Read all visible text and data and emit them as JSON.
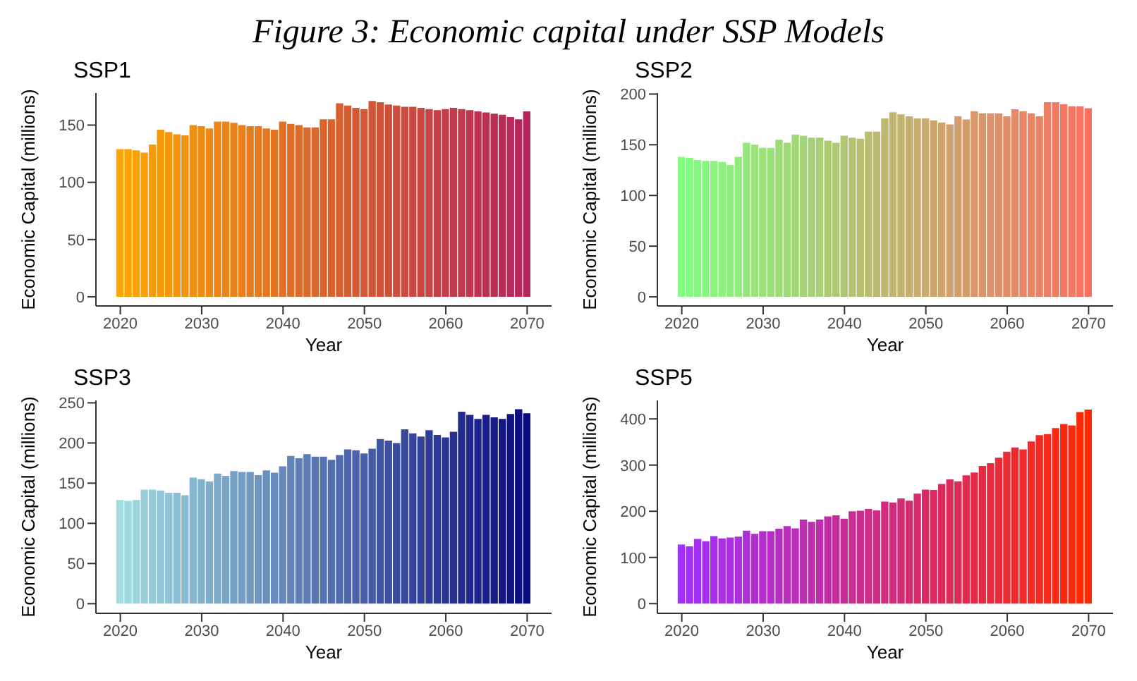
{
  "chart_data": [
    {
      "type": "bar",
      "title": "SSP1",
      "annotations": [
        "Figure 3: Economic capital under SSP Models"
      ],
      "xlabel": "Year",
      "ylabel": "Economic Capital (millions)",
      "xlim": [
        2017,
        2073
      ],
      "xticks": [
        2020,
        2030,
        2040,
        2050,
        2060,
        2070
      ],
      "ylim": [
        -8,
        178
      ],
      "yticks": [
        0,
        50,
        100,
        150
      ],
      "x": [
        2020,
        2021,
        2022,
        2023,
        2024,
        2025,
        2026,
        2027,
        2028,
        2029,
        2030,
        2031,
        2032,
        2033,
        2034,
        2035,
        2036,
        2037,
        2038,
        2039,
        2040,
        2041,
        2042,
        2043,
        2044,
        2045,
        2046,
        2047,
        2048,
        2049,
        2050,
        2051,
        2052,
        2053,
        2054,
        2055,
        2056,
        2057,
        2058,
        2059,
        2060,
        2061,
        2062,
        2063,
        2064,
        2065,
        2066,
        2067,
        2068,
        2069,
        2070
      ],
      "values": [
        129,
        129,
        128,
        126,
        133,
        146,
        144,
        142,
        141,
        150,
        149,
        147,
        153,
        153,
        152,
        150,
        149,
        149,
        147,
        146,
        153,
        151,
        150,
        148,
        148,
        155,
        155,
        169,
        167,
        165,
        164,
        171,
        170,
        168,
        167,
        166,
        166,
        165,
        164,
        163,
        164,
        165,
        164,
        163,
        162,
        161,
        160,
        159,
        157,
        155,
        162
      ],
      "colors": [
        "#ffa500",
        "#fea202",
        "#fca004",
        "#fb9d05",
        "#f99b07",
        "#f89809",
        "#f6960b",
        "#f5930d",
        "#f3900e",
        "#f28e10",
        "#f08b12",
        "#ef8914",
        "#ed8616",
        "#ec8317",
        "#ea8119",
        "#e97e1b",
        "#e77c1d",
        "#e6791f",
        "#e47720",
        "#e37422",
        "#e17124",
        "#e06f26",
        "#de6c28",
        "#dd6a29",
        "#db672b",
        "#da652d",
        "#d9622f",
        "#d75f31",
        "#d65d32",
        "#d45a34",
        "#d35836",
        "#d15538",
        "#d0523a",
        "#ce503b",
        "#cd4d3d",
        "#cb4b3f",
        "#ca4841",
        "#c84643",
        "#c74344",
        "#c54046",
        "#c43e48",
        "#c23b4a",
        "#c1394c",
        "#bf364d",
        "#be334f",
        "#bc3151",
        "#bb2e53",
        "#b92c55",
        "#b82956",
        "#b62758",
        "#b5245a"
      ]
    },
    {
      "type": "bar",
      "title": "SSP2",
      "xlabel": "Year",
      "ylabel": "Economic Capital (millions)",
      "xlim": [
        2017,
        2073
      ],
      "xticks": [
        2020,
        2030,
        2040,
        2050,
        2060,
        2070
      ],
      "ylim": [
        -9,
        201
      ],
      "yticks": [
        0,
        50,
        100,
        150,
        200
      ],
      "x": [
        2020,
        2021,
        2022,
        2023,
        2024,
        2025,
        2026,
        2027,
        2028,
        2029,
        2030,
        2031,
        2032,
        2033,
        2034,
        2035,
        2036,
        2037,
        2038,
        2039,
        2040,
        2041,
        2042,
        2043,
        2044,
        2045,
        2046,
        2047,
        2048,
        2049,
        2050,
        2051,
        2052,
        2053,
        2054,
        2055,
        2056,
        2057,
        2058,
        2059,
        2060,
        2061,
        2062,
        2063,
        2064,
        2065,
        2066,
        2067,
        2068,
        2069,
        2070
      ],
      "values": [
        138,
        137,
        135,
        134,
        134,
        133,
        130,
        138,
        152,
        150,
        147,
        147,
        155,
        152,
        160,
        159,
        157,
        157,
        154,
        152,
        159,
        157,
        156,
        163,
        163,
        176,
        182,
        180,
        178,
        176,
        176,
        174,
        172,
        170,
        178,
        175,
        183,
        181,
        181,
        181,
        178,
        185,
        183,
        181,
        178,
        192,
        192,
        190,
        188,
        188,
        186
      ],
      "colors": [
        "#80ff80",
        "#82fc7f",
        "#85f97f",
        "#87f67e",
        "#8af47d",
        "#8cf17d",
        "#8fee7c",
        "#91eb7c",
        "#94e87b",
        "#96e57a",
        "#98e27a",
        "#9be079",
        "#9ddd78",
        "#a0da78",
        "#a2d777",
        "#a5d476",
        "#a7d176",
        "#a9ce75",
        "#accc74",
        "#aec974",
        "#b1c673",
        "#b3c373",
        "#b6c072",
        "#b8bd71",
        "#bbba71",
        "#bdb870",
        "#bfb56f",
        "#c2b26f",
        "#c4af6e",
        "#c7ac6d",
        "#c9a96d",
        "#cca66c",
        "#cea36c",
        "#d1a16b",
        "#d39e6a",
        "#d59b6a",
        "#d89869",
        "#da9568",
        "#dd9268",
        "#df8f67",
        "#e28d66",
        "#e48a66",
        "#e68765",
        "#e98464",
        "#eb8164",
        "#ee7e63",
        "#f07b63",
        "#f37962",
        "#f57661",
        "#f87361",
        "#fa7060"
      ]
    },
    {
      "type": "bar",
      "title": "SSP3",
      "xlabel": "Year",
      "ylabel": "Economic Capital (millions)",
      "xlim": [
        2017,
        2073
      ],
      "xticks": [
        2020,
        2030,
        2040,
        2050,
        2060,
        2070
      ],
      "ylim": [
        -12,
        253
      ],
      "yticks": [
        0,
        50,
        100,
        150,
        200,
        250
      ],
      "x": [
        2020,
        2021,
        2022,
        2023,
        2024,
        2025,
        2026,
        2027,
        2028,
        2029,
        2030,
        2031,
        2032,
        2033,
        2034,
        2035,
        2036,
        2037,
        2038,
        2039,
        2040,
        2041,
        2042,
        2043,
        2044,
        2045,
        2046,
        2047,
        2048,
        2049,
        2050,
        2051,
        2052,
        2053,
        2054,
        2055,
        2056,
        2057,
        2058,
        2059,
        2060,
        2061,
        2062,
        2063,
        2064,
        2065,
        2066,
        2067,
        2068,
        2069,
        2070
      ],
      "values": [
        129,
        128,
        129,
        142,
        142,
        141,
        138,
        138,
        135,
        157,
        155,
        152,
        162,
        159,
        165,
        164,
        164,
        160,
        166,
        163,
        171,
        184,
        181,
        186,
        183,
        183,
        179,
        185,
        192,
        191,
        187,
        193,
        205,
        203,
        200,
        217,
        212,
        208,
        216,
        210,
        207,
        214,
        239,
        235,
        230,
        235,
        232,
        230,
        236,
        242,
        237
      ],
      "colors": [
        "#a0dce1",
        "#9dd8df",
        "#9ad4dd",
        "#97cfdb",
        "#94cbd9",
        "#91c7d7",
        "#8ec3d5",
        "#8bbfd3",
        "#88bad1",
        "#85b6d0",
        "#82b2ce",
        "#7faecc",
        "#7caaca",
        "#79a5c8",
        "#76a1c6",
        "#739dc4",
        "#7099c2",
        "#6d95c0",
        "#6a90be",
        "#678cbc",
        "#6488ba",
        "#6184b8",
        "#5e80b6",
        "#5b7bb4",
        "#5877b2",
        "#5573b1",
        "#526faf",
        "#4f6bad",
        "#4c66ab",
        "#4962a9",
        "#465ea7",
        "#435aa5",
        "#4056a3",
        "#3d51a1",
        "#3a4d9f",
        "#37499d",
        "#34459b",
        "#314199",
        "#2e3c97",
        "#2b3895",
        "#283493",
        "#253091",
        "#222c90",
        "#1f278e",
        "#1c238c",
        "#191f8a",
        "#161b88",
        "#131786",
        "#101284",
        "#0d0e82",
        "#0a0a80"
      ]
    },
    {
      "type": "bar",
      "title": "SSP5",
      "xlabel": "Year",
      "ylabel": "Economic Capital (millions)",
      "xlim": [
        2017,
        2073
      ],
      "xticks": [
        2020,
        2030,
        2040,
        2050,
        2060,
        2070
      ],
      "ylim": [
        -21,
        440
      ],
      "yticks": [
        0,
        100,
        200,
        300,
        400
      ],
      "x": [
        2020,
        2021,
        2022,
        2023,
        2024,
        2025,
        2026,
        2027,
        2028,
        2029,
        2030,
        2031,
        2032,
        2033,
        2034,
        2035,
        2036,
        2037,
        2038,
        2039,
        2040,
        2041,
        2042,
        2043,
        2044,
        2045,
        2046,
        2047,
        2048,
        2049,
        2050,
        2051,
        2052,
        2053,
        2054,
        2055,
        2056,
        2057,
        2058,
        2059,
        2060,
        2061,
        2062,
        2063,
        2064,
        2065,
        2066,
        2067,
        2068,
        2069,
        2070
      ],
      "values": [
        128,
        124,
        140,
        135,
        146,
        141,
        143,
        145,
        158,
        151,
        157,
        157,
        162,
        168,
        163,
        182,
        177,
        182,
        189,
        191,
        184,
        200,
        201,
        205,
        202,
        221,
        219,
        228,
        223,
        238,
        247,
        246,
        259,
        269,
        265,
        278,
        284,
        298,
        304,
        316,
        329,
        338,
        334,
        351,
        365,
        367,
        380,
        389,
        386,
        415,
        420
      ],
      "colors": [
        "#a030ff",
        "#a230fa",
        "#a430f5",
        "#a630f0",
        "#a82feb",
        "#aa2fe6",
        "#ab2fe0",
        "#ad2fdb",
        "#af2fd6",
        "#b12fd1",
        "#b32ecc",
        "#b52ec7",
        "#b72ec2",
        "#b92ebd",
        "#bb2eb8",
        "#bd2eb3",
        "#be2dad",
        "#c02da8",
        "#c22da3",
        "#c42d9e",
        "#c62d99",
        "#c82d94",
        "#ca2c8f",
        "#cc2c8a",
        "#ce2c85",
        "#d02c80",
        "#d12c7a",
        "#d32c75",
        "#d52c70",
        "#d72b6b",
        "#d92b66",
        "#db2b61",
        "#dd2b5c",
        "#df2b57",
        "#e12b52",
        "#e32a4d",
        "#e42a47",
        "#e62a42",
        "#e82a3d",
        "#ea2a38",
        "#ec2a33",
        "#ee292e",
        "#f02929",
        "#f22924",
        "#f4291f",
        "#f6291a",
        "#f72914",
        "#f9280f",
        "#fb280a",
        "#fd2805",
        "#ff2800"
      ]
    }
  ]
}
